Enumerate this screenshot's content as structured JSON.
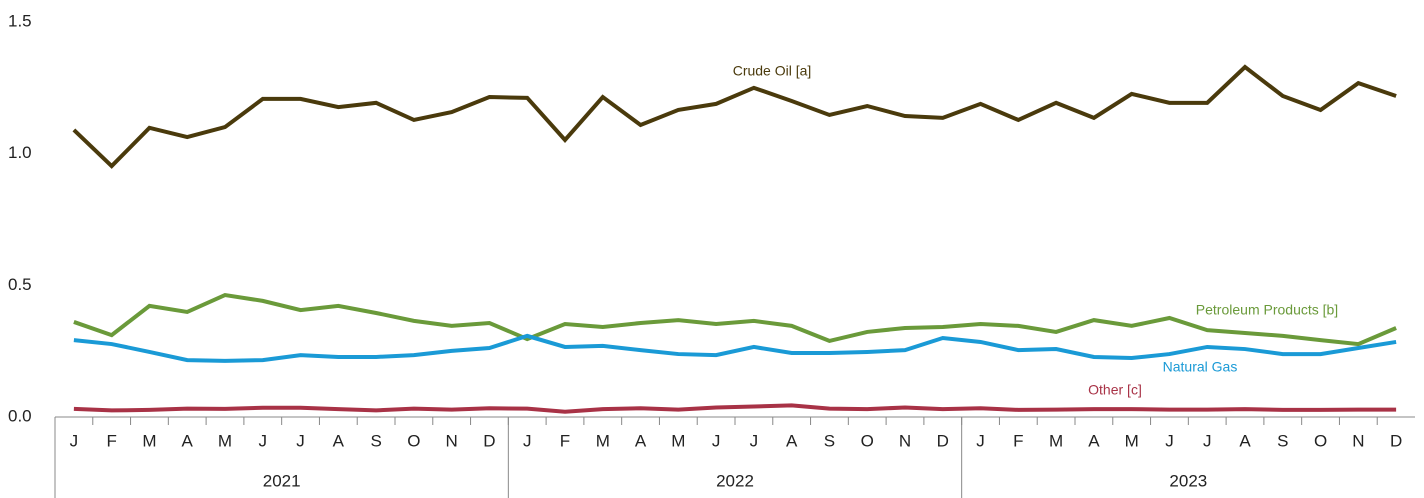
{
  "chart_data": {
    "type": "line",
    "categories": [
      "J",
      "F",
      "M",
      "A",
      "M",
      "J",
      "J",
      "A",
      "S",
      "O",
      "N",
      "D",
      "J",
      "F",
      "M",
      "A",
      "M",
      "J",
      "J",
      "A",
      "S",
      "O",
      "N",
      "D",
      "J",
      "F",
      "M",
      "A",
      "M",
      "J",
      "J",
      "A",
      "S",
      "O",
      "N",
      "D"
    ],
    "groups": [
      "2021",
      "2022",
      "2023"
    ],
    "ylim": [
      0,
      1.5
    ],
    "yticks": [
      {
        "value": 0,
        "label": "0.0"
      },
      0.5,
      {
        "value": 1,
        "label": "1.0"
      },
      1.5
    ],
    "grid": false,
    "series": [
      {
        "name": "Crude Oil [a]",
        "color": "#4a3a0c",
        "values": [
          1.09,
          0.953,
          1.098,
          1.063,
          1.101,
          1.208,
          1.208,
          1.177,
          1.193,
          1.128,
          1.158,
          1.215,
          1.212,
          1.052,
          1.215,
          1.109,
          1.166,
          1.189,
          1.25,
          1.2,
          1.147,
          1.181,
          1.143,
          1.136,
          1.189,
          1.128,
          1.193,
          1.136,
          1.227,
          1.193,
          1.193,
          1.329,
          1.219,
          1.166,
          1.268,
          1.219
        ]
      },
      {
        "name": "Petroleum Products [b]",
        "color": "#6a9a3a",
        "values": [
          0.361,
          0.311,
          0.422,
          0.399,
          0.463,
          0.441,
          0.406,
          0.422,
          0.395,
          0.365,
          0.346,
          0.357,
          0.296,
          0.353,
          0.342,
          0.357,
          0.368,
          0.353,
          0.365,
          0.346,
          0.289,
          0.323,
          0.338,
          0.342,
          0.353,
          0.346,
          0.323,
          0.368,
          0.346,
          0.376,
          0.33,
          0.319,
          0.308,
          0.292,
          0.277,
          0.338
        ]
      },
      {
        "name": "Natural Gas",
        "color": "#1a9ad6",
        "values": [
          0.292,
          0.277,
          0.247,
          0.216,
          0.213,
          0.216,
          0.235,
          0.228,
          0.228,
          0.235,
          0.251,
          0.262,
          0.308,
          0.266,
          0.27,
          0.254,
          0.239,
          0.235,
          0.266,
          0.243,
          0.243,
          0.247,
          0.254,
          0.3,
          0.285,
          0.254,
          0.258,
          0.228,
          0.224,
          0.239,
          0.266,
          0.258,
          0.239,
          0.239,
          0.262,
          0.285
        ]
      },
      {
        "name": "Other [c]",
        "color": "#a83246",
        "values": [
          0.031,
          0.025,
          0.027,
          0.032,
          0.031,
          0.035,
          0.035,
          0.03,
          0.025,
          0.032,
          0.028,
          0.033,
          0.032,
          0.02,
          0.03,
          0.033,
          0.028,
          0.036,
          0.04,
          0.044,
          0.032,
          0.03,
          0.036,
          0.03,
          0.033,
          0.027,
          0.028,
          0.03,
          0.03,
          0.028,
          0.028,
          0.03,
          0.027,
          0.027,
          0.028,
          0.028
        ]
      }
    ]
  }
}
